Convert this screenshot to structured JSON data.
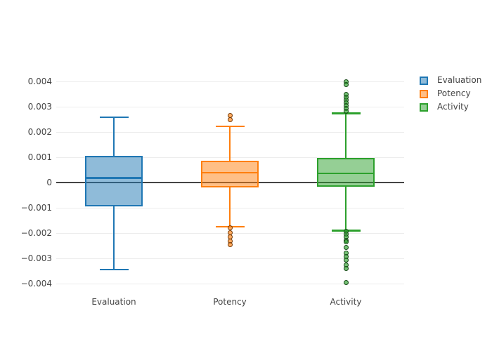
{
  "figure": {
    "background": "#ffffff",
    "axis_text_color": "#444444",
    "gridline_color": "#ececec",
    "zeroline_color": "#444444"
  },
  "chart_data": {
    "type": "box",
    "title": "",
    "xlabel": "",
    "ylabel": "",
    "grid": true,
    "legend_position": "top-right",
    "categories": [
      "Evaluation",
      "Potency",
      "Activity"
    ],
    "yticks": [
      "0.004",
      "0.003",
      "0.002",
      "0.001",
      "0",
      "−0.001",
      "−0.002",
      "−0.003",
      "−0.004"
    ],
    "ytick_values": [
      0.004,
      0.003,
      0.002,
      0.001,
      0,
      -0.001,
      -0.002,
      -0.003,
      -0.004
    ],
    "ylim": [
      -0.0047,
      0.0047
    ],
    "series": [
      {
        "name": "Evaluation",
        "color": "#1f77b4",
        "median": 0.00018,
        "q1": -0.00094,
        "q3": 0.00106,
        "whisker_low": -0.00344,
        "whisker_high": 0.00258,
        "outliers": []
      },
      {
        "name": "Potency",
        "color": "#ff7f0e",
        "median": 0.00039,
        "q1": -0.00019,
        "q3": 0.00086,
        "whisker_low": -0.00175,
        "whisker_high": 0.00222,
        "outliers": [
          0.00264,
          0.0025,
          -0.0018,
          -0.00198,
          -0.00214,
          -0.00231,
          -0.00247
        ]
      },
      {
        "name": "Activity",
        "color": "#2ca02c",
        "median": 0.00036,
        "q1": -0.00017,
        "q3": 0.00097,
        "whisker_low": -0.0019,
        "whisker_high": 0.00274,
        "outliers": [
          0.004,
          0.00387,
          0.0035,
          0.00338,
          0.00327,
          0.00316,
          0.00305,
          0.00294,
          0.00283,
          -0.00194,
          -0.00205,
          -0.00216,
          -0.00228,
          -0.00236,
          -0.00258,
          -0.00278,
          -0.00294,
          -0.00308,
          -0.00325,
          -0.00339,
          -0.00397
        ]
      }
    ]
  }
}
